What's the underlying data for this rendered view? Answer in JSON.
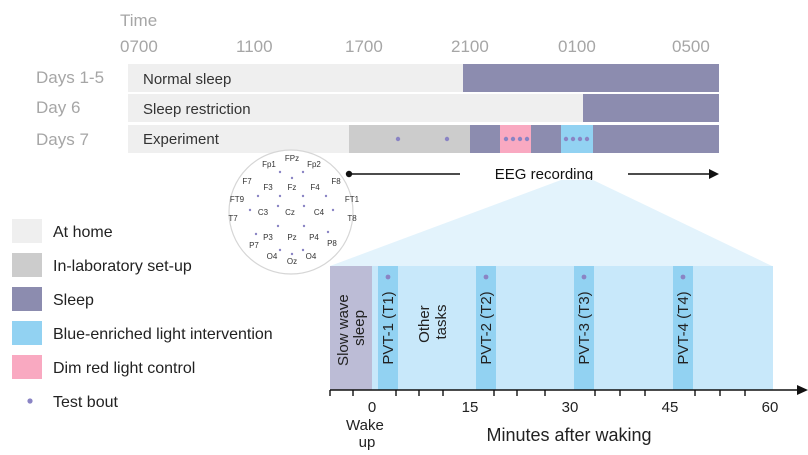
{
  "timeline": {
    "axis_title": "Time",
    "ticks": [
      "0700",
      "1100",
      "1700",
      "2100",
      "0100",
      "0500"
    ],
    "rows": [
      {
        "day": "Days 1-5",
        "label": "Normal sleep"
      },
      {
        "day": "Day 6",
        "label": "Sleep restriction"
      },
      {
        "day": "Days 7",
        "label": "Experiment"
      }
    ],
    "eeg_label": "EEG recording"
  },
  "electrodes": [
    "Fp1",
    "FPz",
    "Fp2",
    "F7",
    "F3",
    "Fz",
    "F4",
    "F8",
    "FT9",
    "C3",
    "Cz",
    "C4",
    "FT1",
    "T7",
    "T8",
    "P3",
    "Pz",
    "P4",
    "P7",
    "P8",
    "O4",
    "Oz",
    "O4"
  ],
  "legend": [
    {
      "label": "At home",
      "color": "#efefef"
    },
    {
      "label": "In-laboratory set-up",
      "color": "#cccccc"
    },
    {
      "label": "Sleep",
      "color": "#8c8caf"
    },
    {
      "label": "Blue-enriched light intervention",
      "color": "#92d2f2"
    },
    {
      "label": "Dim red light control",
      "color": "#f9a9c1"
    },
    {
      "label": "Test bout",
      "marker": "dot"
    }
  ],
  "detail": {
    "sws_label": [
      "Slow wave",
      "sleep"
    ],
    "other_tasks": [
      "Other",
      "tasks"
    ],
    "pvts": [
      "PVT-1 (T1)",
      "PVT-2 (T2)",
      "PVT-3 (T3)",
      "PVT-4 (T4)"
    ],
    "x_ticks": [
      "0",
      "15",
      "30",
      "45",
      "60"
    ],
    "x_label": "Minutes after waking",
    "wake_label": [
      "Wake",
      "up"
    ]
  },
  "colors": {
    "home": "#efefef",
    "setup": "#cccccc",
    "sleep": "#8c8caf",
    "blue_light": "#92d2f2",
    "blue_panel": "#c8e8fa",
    "red_light": "#f9a9c1",
    "dot": "#8a84c4",
    "label_gray": "#a6a6a6"
  }
}
